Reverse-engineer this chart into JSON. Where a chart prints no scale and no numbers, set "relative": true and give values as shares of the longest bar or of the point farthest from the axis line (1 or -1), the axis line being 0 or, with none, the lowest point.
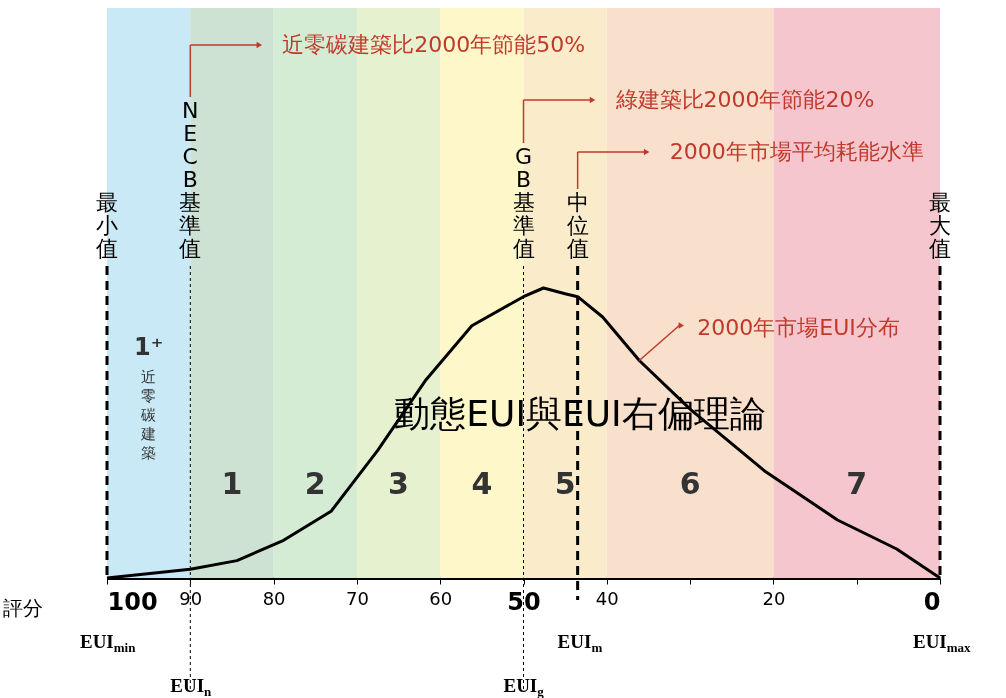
{
  "chart_data": {
    "type": "line",
    "relative": true,
    "xlabel": "評分",
    "xlim": [
      100,
      0
    ],
    "xticks": [
      100,
      90,
      80,
      70,
      60,
      50,
      40,
      {
        "value": 30,
        "label": null
      },
      20,
      {
        "value": 10,
        "label": null
      },
      0
    ],
    "x": [
      100,
      90,
      84.4,
      78.8,
      73.1,
      67.5,
      61.8,
      56.2,
      50,
      47.6,
      45,
      43.5,
      40.5,
      36.1,
      29.9,
      21.1,
      12.3,
      5.2,
      0
    ],
    "series": [
      {
        "color": "#000000",
        "values": [
          0,
          0.03,
          0.06,
          0.13,
          0.23,
          0.44,
          0.68,
          0.87,
          0.97,
          1.0,
          0.98,
          0.97,
          0.9,
          0.75,
          0.58,
          0.37,
          0.2,
          0.1,
          0
        ]
      }
    ],
    "bands": [
      {
        "axis": "x",
        "from": 100,
        "to": 90,
        "label": "1⁺\n近零碳建築",
        "color": "#c9e9f6"
      },
      {
        "axis": "x",
        "from": 90,
        "to": 80,
        "label": "1",
        "color": "#cde2d3"
      },
      {
        "axis": "x",
        "from": 80,
        "to": 70,
        "label": "2",
        "color": "#d5ecd4"
      },
      {
        "axis": "x",
        "from": 70,
        "to": 60,
        "label": "3",
        "color": "#e6f2cf"
      },
      {
        "axis": "x",
        "from": 60,
        "to": 50,
        "label": "4",
        "color": "#fdf7c9"
      },
      {
        "axis": "x",
        "from": 50,
        "to": 40,
        "label": "5",
        "color": "#faeccb"
      },
      {
        "axis": "x",
        "from": 40,
        "to": 20,
        "label": "6",
        "color": "#f8e0cc"
      },
      {
        "axis": "x",
        "from": 20,
        "to": 0,
        "label": "7",
        "color": "#f6c6cf"
      }
    ],
    "ref_lines": [
      {
        "axis": "x",
        "value": 100,
        "label": "最小值",
        "line_style": "dashed"
      },
      {
        "axis": "x",
        "value": 90,
        "label": "NECB基準值",
        "line_style": "dotted"
      },
      {
        "axis": "x",
        "value": 50,
        "label": "GB基準值",
        "line_style": "dotted"
      },
      {
        "axis": "x",
        "value": 43.5,
        "label": "中位值",
        "line_style": "dashed"
      },
      {
        "axis": "x",
        "value": 0,
        "label": "最大值",
        "line_style": "dashed"
      }
    ],
    "annotations": [
      "近零碳建築比2000年節能50%",
      "綠建築比2000年節能20%",
      "2000年市場平均耗能水準",
      {
        "text": "2000年市場EUI分布",
        "x": 36.1,
        "y": 0.75
      },
      "動態EUI與EUI右偏理論",
      "EUI$_{min}$",
      "EUI$_{n}$",
      "EUI$_{g}$",
      "EUI$_{m}$",
      "EUI$_{max}$"
    ]
  }
}
